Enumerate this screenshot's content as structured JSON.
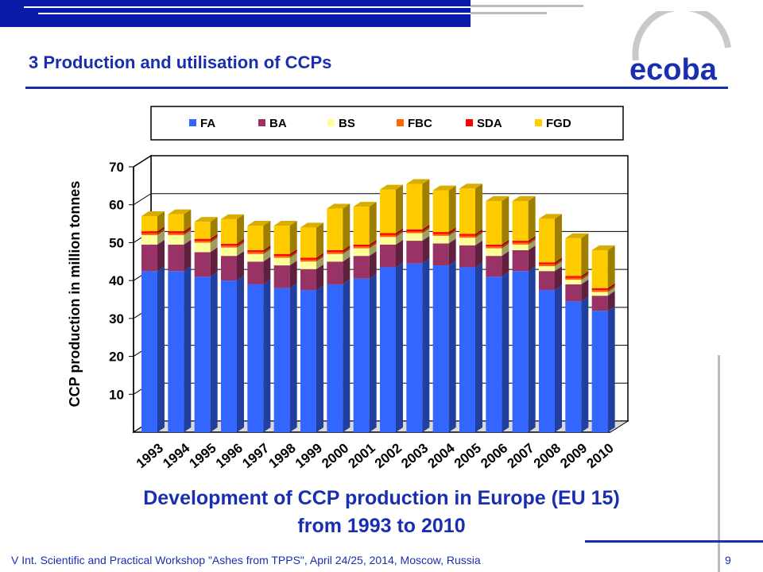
{
  "slide": {
    "title": "3  Production and utilisation of CCPs",
    "logo_text": "ecoba",
    "caption_line1": "Development of CCP production in Europe (EU 15)",
    "caption_line2": "from 1993 to 2010",
    "footer": "V Int. Scientific and Practical Workshop \"Ashes from TPPS\", April 24/25, 2014, Moscow, Russia",
    "page_number": "9"
  },
  "colors": {
    "accent": "#1a2fb0",
    "FA": "#3366ff",
    "BA": "#993366",
    "BS": "#ffff99",
    "FBC": "#ff6600",
    "SDA": "#ff0000",
    "FGD": "#ffcc00"
  },
  "chart_data": {
    "type": "bar",
    "stacked": true,
    "three_d": true,
    "title": "",
    "xlabel": "",
    "ylabel": "CCP production in million tonnes",
    "ylim": [
      0,
      70
    ],
    "yticks": [
      10,
      20,
      30,
      40,
      50,
      60,
      70
    ],
    "grid": true,
    "legend_position": "top",
    "categories": [
      "1993",
      "1994",
      "1995",
      "1996",
      "1997",
      "1998",
      "1999",
      "2000",
      "2001",
      "2002",
      "2003",
      "2004",
      "2005",
      "2006",
      "2007",
      "2008",
      "2009",
      "2010"
    ],
    "series": [
      {
        "name": "FA",
        "values": [
          42.5,
          42.5,
          41,
          40,
          39,
          38,
          37.5,
          39,
          40.5,
          43.5,
          44.5,
          44,
          43.5,
          41,
          42.5,
          37.5,
          34.5,
          32
        ]
      },
      {
        "name": "BA",
        "values": [
          7,
          7,
          6.5,
          6.5,
          6,
          6,
          5.5,
          6,
          6,
          6,
          6,
          5.8,
          5.8,
          5.5,
          5.5,
          5,
          4.5,
          4
        ]
      },
      {
        "name": "BS",
        "values": [
          2.5,
          2.5,
          2.5,
          2.2,
          2,
          2,
          2,
          2,
          2,
          2,
          2,
          2,
          2,
          2,
          1.5,
          1.3,
          1.2,
          1
        ]
      },
      {
        "name": "FBC",
        "values": [
          0.5,
          0.5,
          0.5,
          0.5,
          0.5,
          0.5,
          0.5,
          0.5,
          0.5,
          0.5,
          0.5,
          0.5,
          0.5,
          0.5,
          0.5,
          0.5,
          0.5,
          0.5
        ]
      },
      {
        "name": "SDA",
        "values": [
          0.5,
          0.5,
          0.5,
          0.5,
          0.5,
          0.5,
          0.5,
          0.5,
          0.5,
          0.5,
          0.5,
          0.5,
          0.5,
          0.5,
          0.5,
          0.5,
          0.5,
          0.5
        ]
      },
      {
        "name": "FGD",
        "values": [
          4,
          4.5,
          4.5,
          6.5,
          6.5,
          7.5,
          8,
          11,
          10,
          11.5,
          12,
          11,
          12,
          11.5,
          10.5,
          11.5,
          10,
          10
        ]
      }
    ]
  }
}
